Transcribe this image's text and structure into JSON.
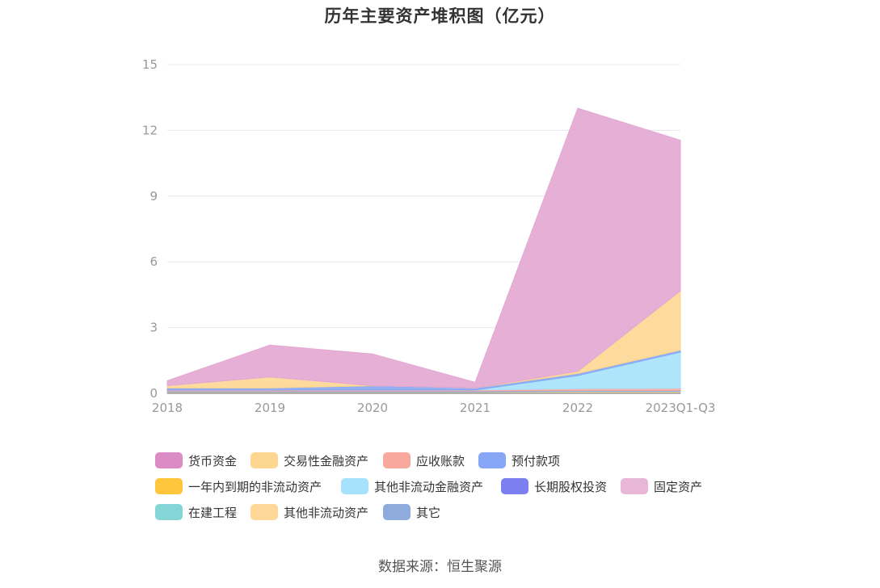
{
  "title": "历年主要资产堆积图（亿元）",
  "source": "数据来源：恒生聚源",
  "chart_data": {
    "type": "area",
    "stacked": true,
    "title": "历年主要资产堆积图（亿元）",
    "categories": [
      "2018",
      "2019",
      "2020",
      "2021",
      "2022",
      "2023Q1-Q3"
    ],
    "ylim": [
      0,
      15
    ],
    "yticks": [
      0,
      3,
      6,
      9,
      12,
      15
    ],
    "grid": true,
    "legend_position": "bottom",
    "series": [
      {
        "name": "其它",
        "color": "#8faadc",
        "values": [
          0.03,
          0.03,
          0.03,
          0.03,
          0.03,
          0.03
        ]
      },
      {
        "name": "其他非流动资产",
        "color": "#ffd899",
        "values": [
          0.03,
          0.03,
          0.03,
          0.03,
          0.05,
          0.05
        ]
      },
      {
        "name": "在建工程",
        "color": "#84d6d6",
        "values": [
          0.02,
          0.02,
          0.02,
          0.02,
          0.03,
          0.03
        ]
      },
      {
        "name": "长期股权投资",
        "color": "#7b7ff0",
        "values": [
          0.02,
          0.02,
          0.02,
          0.02,
          0.02,
          0.02
        ]
      },
      {
        "name": "应收账款",
        "color": "#f8a89c",
        "values": [
          0.05,
          0.05,
          0.05,
          0.05,
          0.08,
          0.1
        ]
      },
      {
        "name": "其他非流动金融资产",
        "color": "#a6e2fb",
        "values": [
          0.0,
          0.0,
          0.0,
          0.0,
          0.6,
          1.65
        ]
      },
      {
        "name": "预付款项",
        "color": "#87a7f6",
        "values": [
          0.1,
          0.1,
          0.2,
          0.1,
          0.1,
          0.1
        ]
      },
      {
        "name": "一年内到期的非流动资产",
        "color": "#fec63d",
        "values": [
          0.0,
          0.0,
          0.0,
          0.0,
          0.0,
          0.0
        ]
      },
      {
        "name": "交易性金融资产",
        "color": "#fdd792",
        "values": [
          0.1,
          0.5,
          0.0,
          0.0,
          0.1,
          2.7
        ]
      },
      {
        "name": "固定资产",
        "color": "#e8b7d8",
        "values": [
          0.0,
          0.0,
          0.0,
          0.0,
          0.0,
          0.0
        ]
      },
      {
        "name": "货币资金",
        "color": "#e3a7d2",
        "values": [
          0.23,
          1.45,
          1.45,
          0.25,
          12.0,
          6.87
        ]
      }
    ]
  },
  "legend": [
    {
      "name": "货币资金",
      "color": "#dc8cc4"
    },
    {
      "name": "交易性金融资产",
      "color": "#fdd792"
    },
    {
      "name": "应收账款",
      "color": "#f8a89c"
    },
    {
      "name": "预付款项",
      "color": "#87a7f6"
    },
    {
      "name": "一年内到期的非流动资产",
      "color": "#fec63d"
    },
    {
      "name": "其他非流动金融资产",
      "color": "#a6e2fb"
    },
    {
      "name": "长期股权投资",
      "color": "#7b7ff0"
    },
    {
      "name": "固定资产",
      "color": "#e8b7d8"
    },
    {
      "name": "在建工程",
      "color": "#84d6d6"
    },
    {
      "name": "其他非流动资产",
      "color": "#ffd899"
    },
    {
      "name": "其它",
      "color": "#8faadc"
    }
  ]
}
